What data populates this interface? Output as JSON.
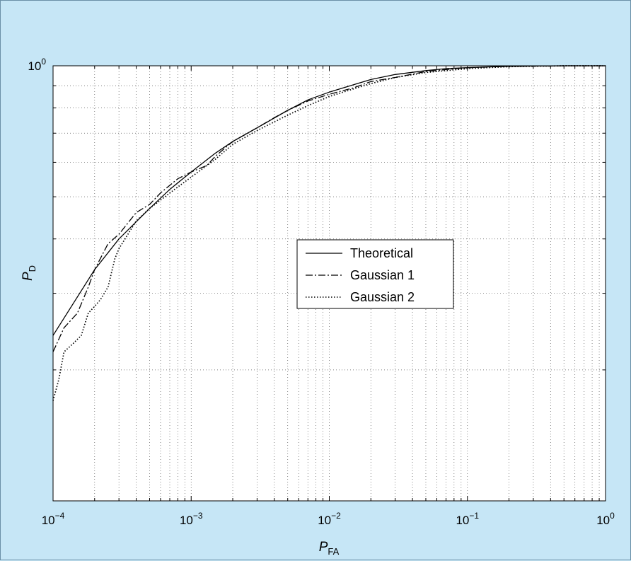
{
  "chart_data": {
    "type": "line",
    "title": "",
    "xlabel": {
      "symbol": "P",
      "subscript": "FA"
    },
    "ylabel": {
      "symbol": "P",
      "subscript": "D"
    },
    "x_scale": "log",
    "y_scale": "log",
    "xlim": [
      0.0001,
      1
    ],
    "ylim": [
      0.1,
      1
    ],
    "grid": true,
    "legend_position": "center",
    "x_ticks": [
      {
        "value": 0.0001,
        "base": "10",
        "exp": "−4"
      },
      {
        "value": 0.001,
        "base": "10",
        "exp": "−3"
      },
      {
        "value": 0.01,
        "base": "10",
        "exp": "−2"
      },
      {
        "value": 0.1,
        "base": "10",
        "exp": "−1"
      },
      {
        "value": 1,
        "base": "10",
        "exp": "0"
      }
    ],
    "y_ticks": [
      {
        "value": 1,
        "base": "10",
        "exp": "0"
      }
    ],
    "series": [
      {
        "name": "Theoretical",
        "style": "solid",
        "x": [
          0.0001,
          0.0002,
          0.0003,
          0.0005,
          0.0007,
          0.001,
          0.0015,
          0.002,
          0.003,
          0.005,
          0.007,
          0.01,
          0.015,
          0.02,
          0.03,
          0.05,
          0.07,
          0.1,
          0.15,
          0.2,
          0.3,
          0.5,
          0.7,
          1
        ],
        "y": [
          0.24,
          0.34,
          0.4,
          0.47,
          0.52,
          0.57,
          0.63,
          0.67,
          0.72,
          0.79,
          0.835,
          0.87,
          0.905,
          0.93,
          0.955,
          0.975,
          0.985,
          0.99,
          0.995,
          0.997,
          0.999,
          1.0,
          1.0,
          1.0
        ]
      },
      {
        "name": "Gaussian 1",
        "style": "dashdot",
        "x": [
          0.0001,
          0.00012,
          0.00015,
          0.00018,
          0.0002,
          0.00025,
          0.0003,
          0.0004,
          0.0005,
          0.0006,
          0.0008,
          0.001,
          0.0013,
          0.0015,
          0.002,
          0.003,
          0.004,
          0.005,
          0.007,
          0.01,
          0.015,
          0.02,
          0.03,
          0.05,
          0.07,
          0.1,
          0.2,
          0.5,
          1
        ],
        "y": [
          0.22,
          0.25,
          0.27,
          0.31,
          0.34,
          0.39,
          0.41,
          0.46,
          0.48,
          0.51,
          0.55,
          0.57,
          0.59,
          0.62,
          0.67,
          0.72,
          0.76,
          0.79,
          0.83,
          0.86,
          0.89,
          0.92,
          0.94,
          0.97,
          0.98,
          0.99,
          0.997,
          1.0,
          1.0
        ]
      },
      {
        "name": "Gaussian 2",
        "style": "dotted",
        "x": [
          0.0001,
          0.00011,
          0.00012,
          0.00014,
          0.00016,
          0.00018,
          0.0002,
          0.00022,
          0.00025,
          0.00028,
          0.0003,
          0.0004,
          0.0005,
          0.0007,
          0.001,
          0.0015,
          0.002,
          0.003,
          0.005,
          0.007,
          0.01,
          0.015,
          0.02,
          0.03,
          0.05,
          0.1,
          0.2,
          0.5,
          1
        ],
        "y": [
          0.17,
          0.19,
          0.22,
          0.23,
          0.24,
          0.27,
          0.28,
          0.29,
          0.31,
          0.36,
          0.38,
          0.44,
          0.47,
          0.51,
          0.555,
          0.61,
          0.66,
          0.71,
          0.77,
          0.81,
          0.85,
          0.885,
          0.91,
          0.94,
          0.965,
          0.985,
          0.995,
          1.0,
          1.0
        ]
      }
    ]
  }
}
